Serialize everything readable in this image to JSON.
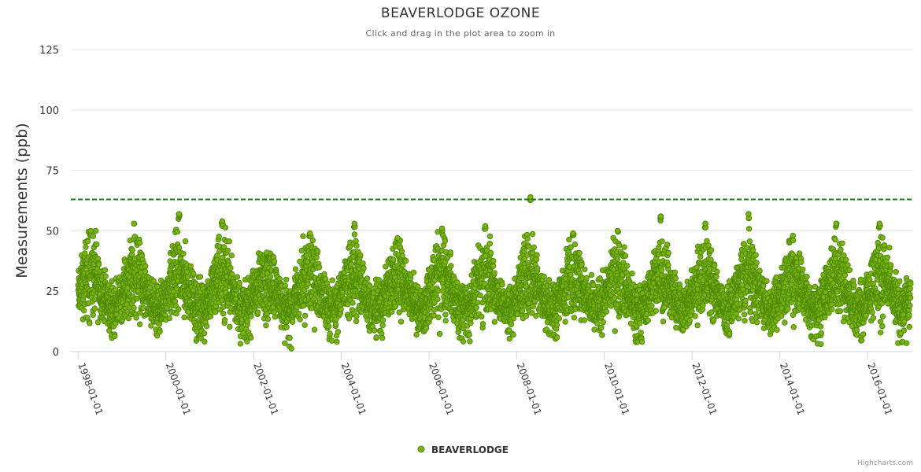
{
  "chart_data": {
    "type": "scatter",
    "title": "BEAVERLODGE OZONE",
    "subtitle": "Click and drag in the plot area to zoom in",
    "xlabel": "",
    "ylabel": "Measurements (ppb)",
    "x_type": "datetime",
    "x_range": [
      "1997-11-01",
      "2017-01-15"
    ],
    "ylim": [
      0,
      125
    ],
    "y_ticks": [
      0,
      25,
      50,
      75,
      100,
      125
    ],
    "x_tick_labels": [
      "1998-01-01",
      "2000-01-01",
      "2002-01-01",
      "2004-01-01",
      "2006-01-01",
      "2008-01-01",
      "2010-01-01",
      "2012-01-01",
      "2014-01-01",
      "2016-01-01"
    ],
    "grid": true,
    "legend_position": "bottom-center",
    "reference_line": {
      "value": 63,
      "style": "dashed",
      "color": "#1a7a1a"
    },
    "series": [
      {
        "name": "BEAVERLODGE",
        "color": "#7cb311",
        "marker_outline": "#4d8a0a",
        "data_summary": "daily ozone measurements from 1998-01 to 2016-12; seasonal cycle peaking each spring at roughly 45-57 ppb and dipping each autumn/winter to roughly 2-10 ppb; annual medians around 25-35 ppb; maximum about 64 ppb in spring 2008",
        "yearly_peaks": [
          {
            "year": 1998,
            "x": "1998-04-15",
            "y": 50
          },
          {
            "year": 1999,
            "x": "1999-04-10",
            "y": 53
          },
          {
            "year": 2000,
            "x": "2000-04-20",
            "y": 57
          },
          {
            "year": 2001,
            "x": "2001-04-15",
            "y": 54
          },
          {
            "year": 2002,
            "x": "2002-04-20",
            "y": 41
          },
          {
            "year": 2003,
            "x": "2003-04-15",
            "y": 49
          },
          {
            "year": 2004,
            "x": "2004-04-20",
            "y": 53
          },
          {
            "year": 2005,
            "x": "2005-04-15",
            "y": 47
          },
          {
            "year": 2006,
            "x": "2006-04-20",
            "y": 51
          },
          {
            "year": 2007,
            "x": "2007-04-15",
            "y": 52
          },
          {
            "year": 2008,
            "x": "2008-04-25",
            "y": 64
          },
          {
            "year": 2009,
            "x": "2009-04-15",
            "y": 49
          },
          {
            "year": 2010,
            "x": "2010-04-20",
            "y": 50
          },
          {
            "year": 2011,
            "x": "2011-04-15",
            "y": 56
          },
          {
            "year": 2012,
            "x": "2012-04-20",
            "y": 53
          },
          {
            "year": 2013,
            "x": "2013-04-15",
            "y": 57
          },
          {
            "year": 2014,
            "x": "2014-04-20",
            "y": 48
          },
          {
            "year": 2015,
            "x": "2015-04-15",
            "y": 53
          },
          {
            "year": 2016,
            "x": "2016-04-10",
            "y": 53
          }
        ],
        "yearly_minimums": [
          {
            "year": 1998,
            "y": 4
          },
          {
            "year": 1999,
            "y": 6
          },
          {
            "year": 2000,
            "y": 3
          },
          {
            "year": 2001,
            "y": 2
          },
          {
            "year": 2002,
            "y": 1
          },
          {
            "year": 2003,
            "y": 3
          },
          {
            "year": 2004,
            "y": 4
          },
          {
            "year": 2005,
            "y": 6
          },
          {
            "year": 2006,
            "y": 3
          },
          {
            "year": 2007,
            "y": 5
          },
          {
            "year": 2008,
            "y": 3
          },
          {
            "year": 2009,
            "y": 5
          },
          {
            "year": 2010,
            "y": 3
          },
          {
            "year": 2011,
            "y": 8
          },
          {
            "year": 2012,
            "y": 6
          },
          {
            "year": 2013,
            "y": 6
          },
          {
            "year": 2014,
            "y": 3
          },
          {
            "year": 2015,
            "y": 4
          },
          {
            "year": 2016,
            "y": 2
          }
        ]
      }
    ]
  },
  "legend": {
    "items": [
      {
        "label": "BEAVERLODGE",
        "color": "#7cb311"
      }
    ]
  },
  "credits": "Highcharts.com"
}
